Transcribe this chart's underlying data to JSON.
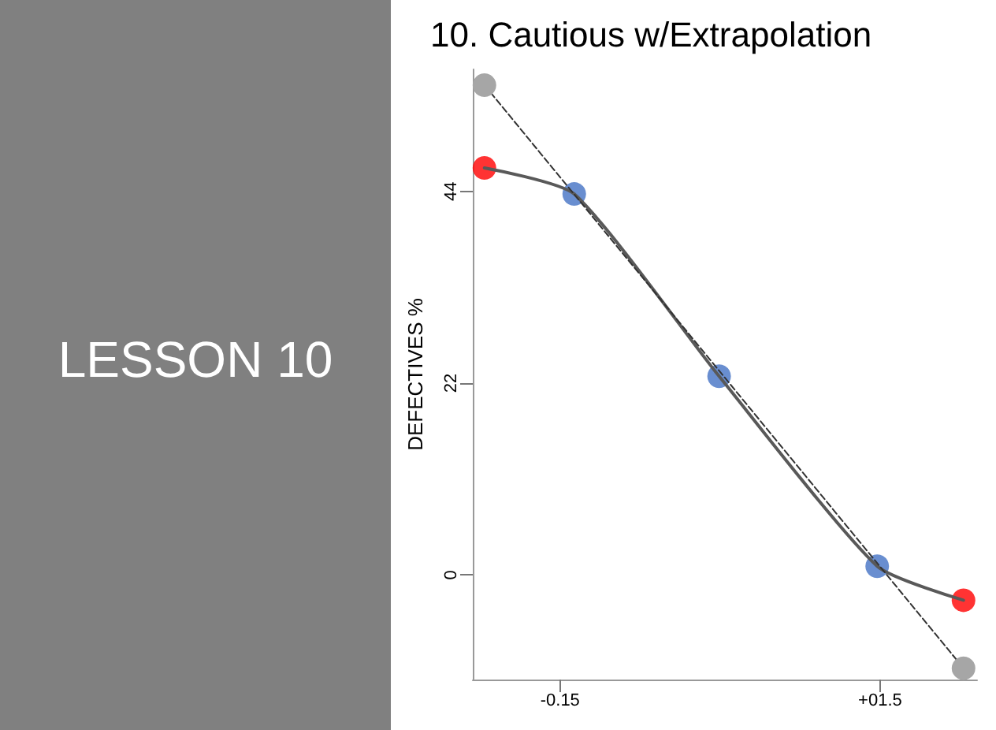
{
  "chart_data": {
    "type": "line",
    "title": "10. Cautious w/Extrapolation",
    "ylabel": "DEFECTIVES %",
    "annotations": [
      "LESSON 10"
    ],
    "series": [
      {
        "color": "#595959",
        "marker": "none",
        "line_style": "solid",
        "x": [
          -0.54,
          -0.077,
          0.67,
          1.485,
          1.93
        ],
        "values": [
          46.7,
          43.7,
          22.8,
          1.0,
          -2.9
        ]
      },
      {
        "color": "#a6a6a6",
        "marker": "circle",
        "line_style": "dashed",
        "x": [
          -0.54,
          1.93
        ],
        "values": [
          56.2,
          -10.7
        ]
      },
      {
        "type": "scatter",
        "color": "#4472c4",
        "marker": "circle",
        "x": [
          -0.077,
          0.67,
          1.485
        ],
        "values": [
          43.7,
          22.8,
          1.0
        ]
      },
      {
        "type": "scatter",
        "color": "#ff0000",
        "marker": "circle",
        "x": [
          -0.54,
          1.93
        ],
        "values": [
          46.7,
          -2.9
        ]
      }
    ],
    "xlim": [
      -0.6,
      2.0
    ],
    "xticks": [
      -0.15,
      {
        "value": 1.5,
        "label": "+01.5"
      }
    ],
    "ylim": [
      -12,
      58
    ],
    "yticks": [
      0,
      22,
      44
    ],
    "grid": false
  }
}
